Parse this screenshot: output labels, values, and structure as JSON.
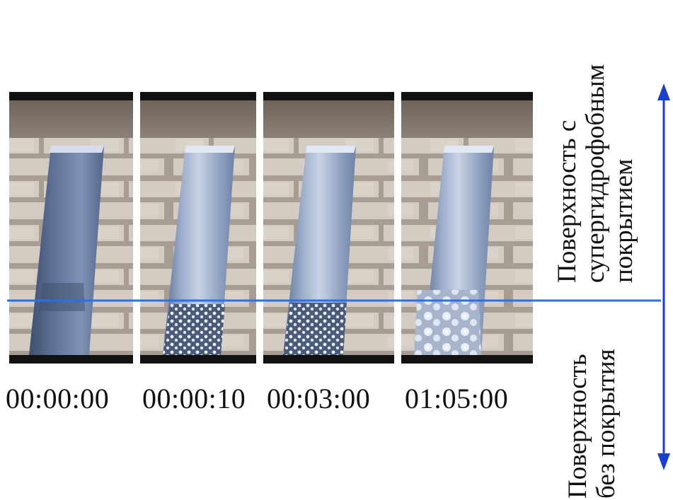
{
  "timestamps": [
    "00:00:00",
    "00:00:10",
    "00:03:00",
    "01:05:00"
  ],
  "labels": {
    "coated": [
      "Поверхность с",
      "супергидрофобным",
      "покрытием"
    ],
    "uncoated": [
      "Поверхность",
      "без покрытия"
    ]
  },
  "colors": {
    "divider_line": "#2f6fe0",
    "arrow": "#1a3fcf",
    "frame_bar": "#111111",
    "brick": "#cdc4ba",
    "mortar": "#9a8f86",
    "metal_light": "#b9c6dc",
    "metal_dark": "#4e5f80"
  },
  "icons": {
    "arrow": "double-headed-vertical-arrow"
  }
}
